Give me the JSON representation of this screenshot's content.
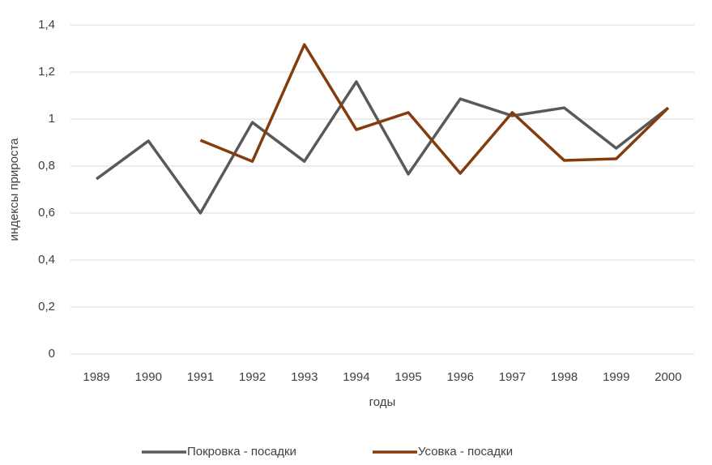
{
  "chart_data": {
    "type": "line",
    "x_label": "годы",
    "y_label": "индексы прироста",
    "categories": [
      "1989",
      "1990",
      "1991",
      "1992",
      "1993",
      "1994",
      "1995",
      "1996",
      "1997",
      "1998",
      "1999",
      "2000"
    ],
    "series": [
      {
        "name": "Покровка - посадки",
        "color": "#595959",
        "values": [
          0.745,
          0.907,
          0.6,
          0.986,
          0.82,
          1.159,
          0.766,
          1.086,
          1.014,
          1.048,
          0.876,
          1.048
        ]
      },
      {
        "name": "Усовка - посадки",
        "color": "#843c0c",
        "values": [
          null,
          null,
          0.91,
          0.82,
          1.317,
          0.955,
          1.028,
          0.769,
          1.028,
          0.824,
          0.831,
          1.048
        ]
      }
    ],
    "ylim": [
      0,
      1.4
    ],
    "yticks": [
      0,
      {
        "value": 0.2,
        "label": "0,2"
      },
      {
        "value": 0.4,
        "label": "0,4"
      },
      {
        "value": 0.6,
        "label": "0,6"
      },
      {
        "value": 0.8,
        "label": "0,8"
      },
      1,
      {
        "value": 1.2,
        "label": "1,2"
      },
      {
        "value": 1.4,
        "label": "1,4"
      }
    ],
    "grid": true,
    "legend": "bottom"
  }
}
